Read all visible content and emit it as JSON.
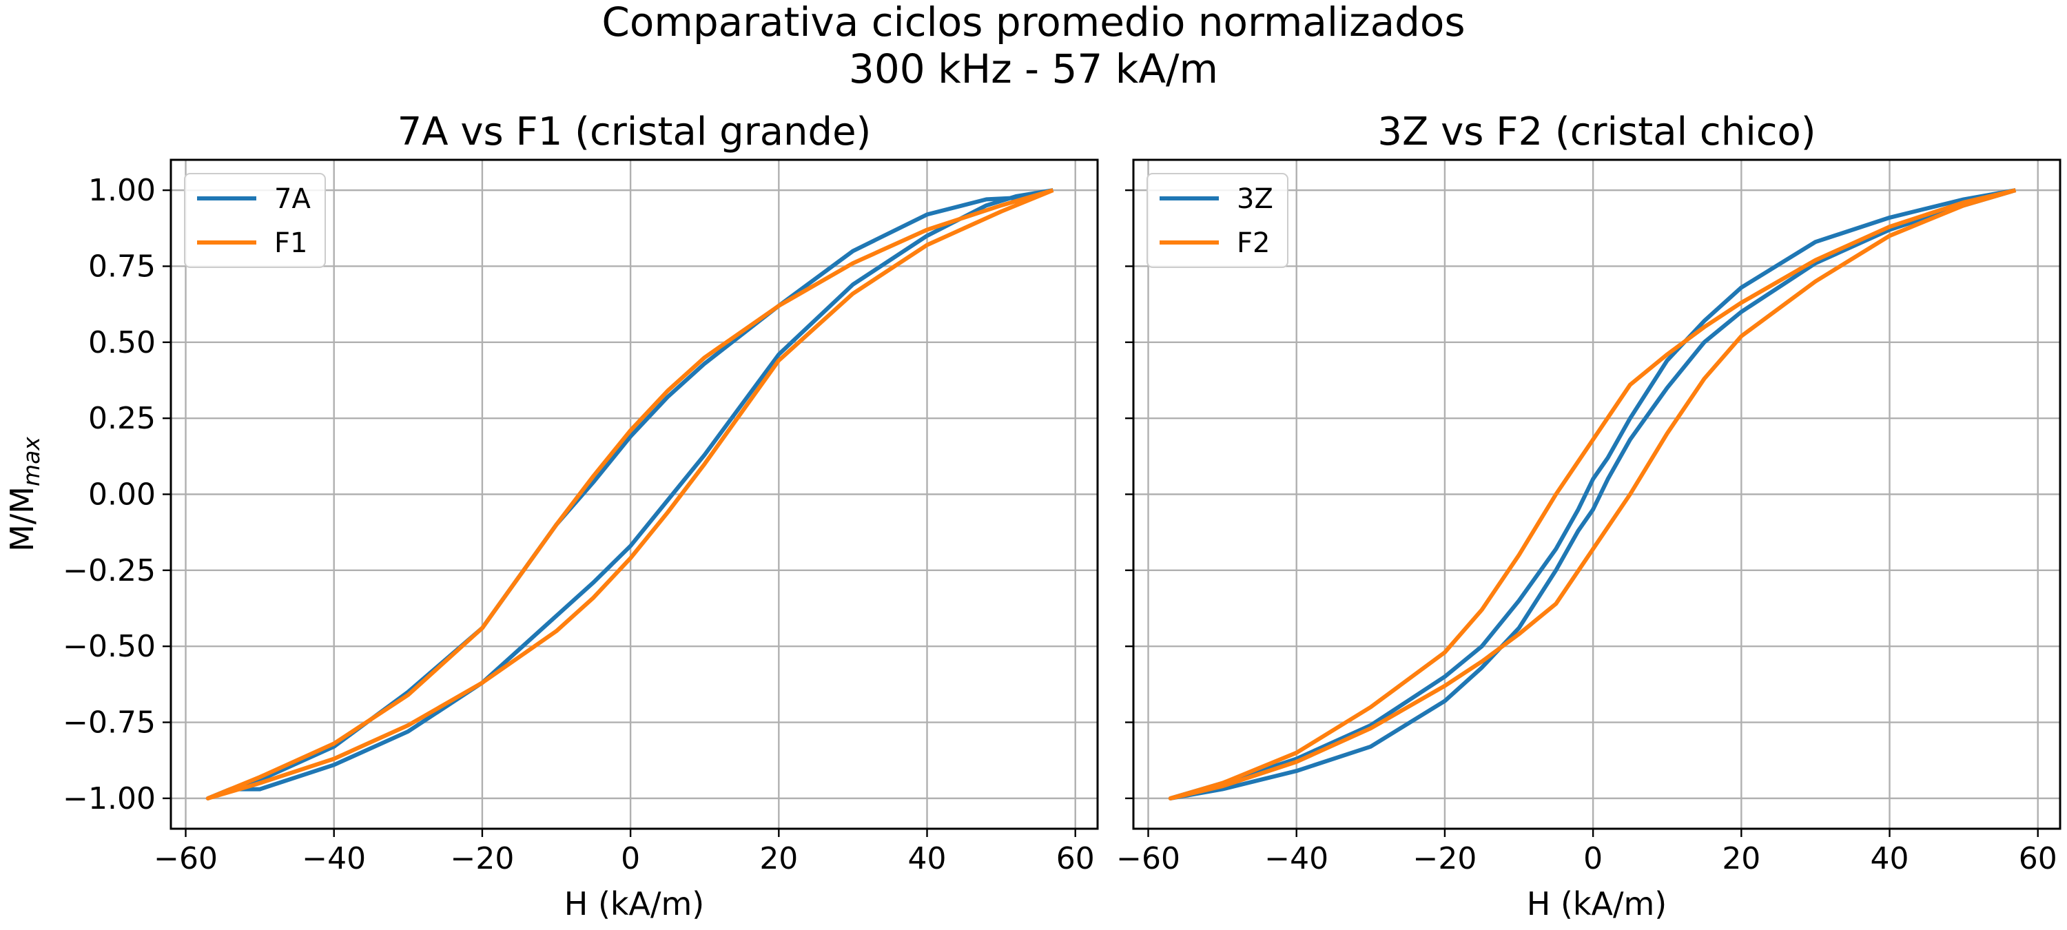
{
  "figure": {
    "title_line1": "Comparativa ciclos promedio normalizados",
    "title_line2": "300 kHz - 57 kA/m"
  },
  "chart_data": [
    {
      "type": "line",
      "title": "7A vs F1 (cristal grande)",
      "xlabel": "H (kA/m)",
      "ylabel": "M/M",
      "ylabel_subscript": "max",
      "xlim": [
        -62,
        63
      ],
      "ylim": [
        -1.1,
        1.1
      ],
      "xticks": [
        -60,
        -40,
        -20,
        0,
        20,
        40,
        60
      ],
      "yticks": [
        -1.0,
        -0.75,
        -0.5,
        -0.25,
        0.0,
        0.25,
        0.5,
        0.75,
        1.0
      ],
      "xtick_labels": [
        "−60",
        "−40",
        "−20",
        "0",
        "20",
        "40",
        "60"
      ],
      "ytick_labels": [
        "−1.00",
        "−0.75",
        "−0.50",
        "−0.25",
        "0.00",
        "0.25",
        "0.50",
        "0.75",
        "1.00"
      ],
      "grid": true,
      "legend_position": "upper-left",
      "series": [
        {
          "name": "7A",
          "color": "#1f77b4",
          "x": [
            57,
            52,
            48,
            40,
            30,
            20,
            10,
            5,
            0,
            -5,
            -10,
            -20,
            -30,
            -40,
            -50,
            -54,
            -57,
            -54,
            -50,
            -40,
            -30,
            -20,
            -10,
            -5,
            0,
            5,
            10,
            20,
            30,
            40,
            48,
            52,
            57
          ],
          "y": [
            1.0,
            0.975,
            0.97,
            0.92,
            0.8,
            0.62,
            0.43,
            0.32,
            0.19,
            0.04,
            -0.1,
            -0.44,
            -0.65,
            -0.83,
            -0.94,
            -0.97,
            -1.0,
            -0.97,
            -0.97,
            -0.89,
            -0.78,
            -0.62,
            -0.4,
            -0.29,
            -0.17,
            -0.02,
            0.13,
            0.46,
            0.69,
            0.85,
            0.95,
            0.98,
            1.0
          ]
        },
        {
          "name": "F1",
          "color": "#ff7f0e",
          "x": [
            57,
            50,
            40,
            30,
            20,
            10,
            5,
            0,
            -5,
            -10,
            -20,
            -30,
            -40,
            -50,
            -57,
            -50,
            -40,
            -30,
            -20,
            -10,
            -5,
            0,
            5,
            10,
            20,
            30,
            40,
            50,
            57
          ],
          "y": [
            1.0,
            0.95,
            0.87,
            0.76,
            0.62,
            0.45,
            0.34,
            0.21,
            0.06,
            -0.1,
            -0.44,
            -0.66,
            -0.82,
            -0.93,
            -1.0,
            -0.95,
            -0.87,
            -0.76,
            -0.62,
            -0.45,
            -0.34,
            -0.21,
            -0.06,
            0.1,
            0.44,
            0.66,
            0.82,
            0.93,
            1.0
          ]
        }
      ]
    },
    {
      "type": "line",
      "title": "3Z vs F2 (cristal chico)",
      "xlabel": "H (kA/m)",
      "ylabel": "",
      "xlim": [
        -62,
        63
      ],
      "ylim": [
        -1.1,
        1.1
      ],
      "xticks": [
        -60,
        -40,
        -20,
        0,
        20,
        40,
        60
      ],
      "yticks": [
        -1.0,
        -0.75,
        -0.5,
        -0.25,
        0.0,
        0.25,
        0.5,
        0.75,
        1.0
      ],
      "xtick_labels": [
        "−60",
        "−40",
        "−20",
        "0",
        "20",
        "40",
        "60"
      ],
      "ytick_labels": [],
      "grid": true,
      "legend_position": "upper-left",
      "series": [
        {
          "name": "3Z",
          "color": "#1f77b4",
          "x": [
            57,
            50,
            40,
            30,
            20,
            15,
            10,
            5,
            2,
            0,
            -2,
            -5,
            -10,
            -15,
            -20,
            -30,
            -40,
            -50,
            -57,
            -50,
            -40,
            -30,
            -20,
            -15,
            -10,
            -5,
            -2,
            0,
            2,
            5,
            10,
            15,
            20,
            30,
            40,
            50,
            57
          ],
          "y": [
            1.0,
            0.97,
            0.91,
            0.83,
            0.68,
            0.57,
            0.44,
            0.25,
            0.12,
            0.05,
            -0.05,
            -0.18,
            -0.35,
            -0.5,
            -0.6,
            -0.76,
            -0.87,
            -0.95,
            -1.0,
            -0.97,
            -0.91,
            -0.83,
            -0.68,
            -0.57,
            -0.44,
            -0.25,
            -0.12,
            -0.05,
            0.05,
            0.18,
            0.35,
            0.5,
            0.6,
            0.76,
            0.87,
            0.95,
            1.0
          ]
        },
        {
          "name": "F2",
          "color": "#ff7f0e",
          "x": [
            57,
            50,
            40,
            30,
            20,
            15,
            10,
            5,
            0,
            -5,
            -10,
            -15,
            -20,
            -30,
            -40,
            -50,
            -57,
            -50,
            -40,
            -30,
            -20,
            -15,
            -10,
            -5,
            0,
            5,
            10,
            15,
            20,
            30,
            40,
            50,
            57
          ],
          "y": [
            1.0,
            0.96,
            0.88,
            0.77,
            0.63,
            0.55,
            0.46,
            0.36,
            0.18,
            0.0,
            -0.2,
            -0.38,
            -0.52,
            -0.7,
            -0.85,
            -0.95,
            -1.0,
            -0.96,
            -0.88,
            -0.77,
            -0.63,
            -0.55,
            -0.46,
            -0.36,
            -0.18,
            0.0,
            0.2,
            0.38,
            0.52,
            0.7,
            0.85,
            0.95,
            1.0
          ]
        }
      ]
    }
  ]
}
